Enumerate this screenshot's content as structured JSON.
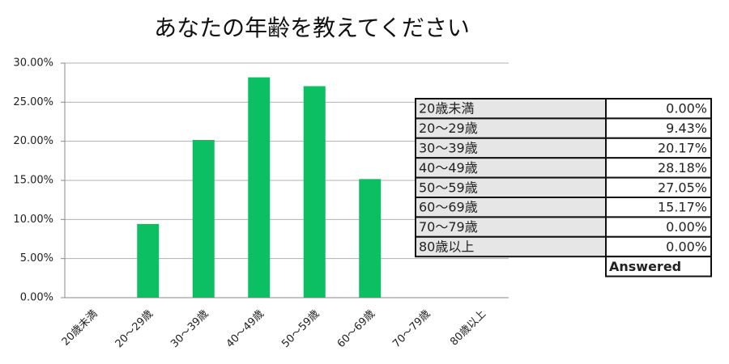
{
  "chart_data": {
    "type": "bar",
    "title": "あなたの年齢を教えてください",
    "categories": [
      "20歳未満",
      "20～29歳",
      "30～39歳",
      "40～49歳",
      "50～59歳",
      "60～69歳",
      "70～79歳",
      "80歳以上"
    ],
    "values": [
      0,
      9.43,
      20.17,
      28.18,
      27.05,
      15.17,
      0,
      0
    ],
    "value_labels": [
      "0.00%",
      "9.43%",
      "20.17%",
      "28.18%",
      "27.05%",
      "15.17%",
      "0.00%",
      "0.00%"
    ],
    "color": "#0cbf63",
    "ylim": [
      0,
      30
    ],
    "yticks": [
      {
        "value": 0,
        "label": "0.00%"
      },
      {
        "value": 5,
        "label": "5.00%"
      },
      {
        "value": 10,
        "label": "10.00%"
      },
      {
        "value": 15,
        "label": "15.00%"
      },
      {
        "value": 20,
        "label": "20.00%"
      },
      {
        "value": 25,
        "label": "25.00%"
      },
      {
        "value": 30,
        "label": "30.00%"
      }
    ],
    "grid": true,
    "table_footer": "Answered"
  }
}
